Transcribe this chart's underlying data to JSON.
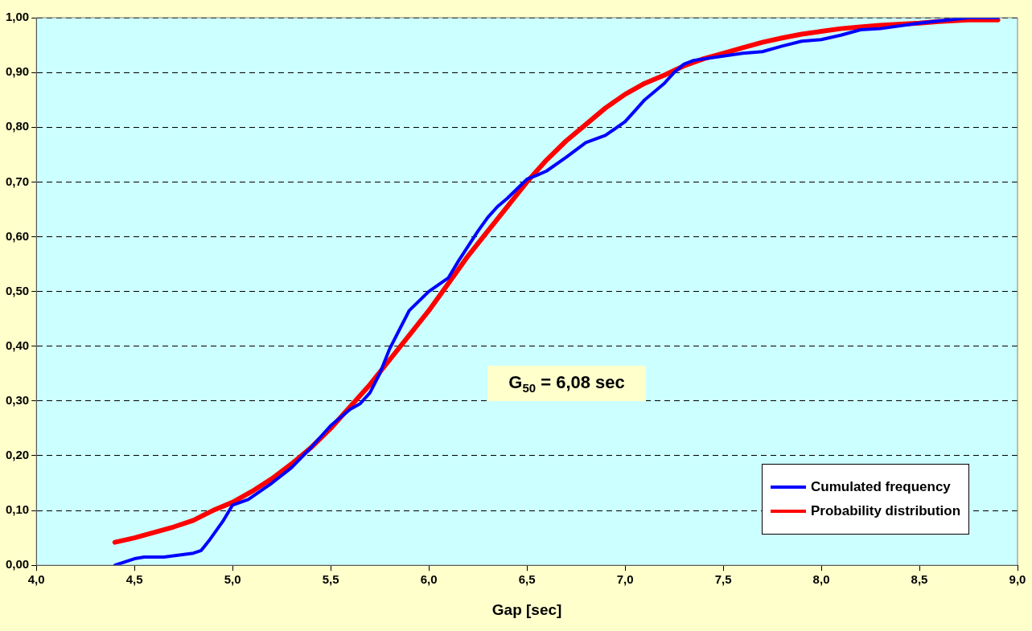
{
  "chart_data": {
    "type": "line",
    "xlabel": "Gap [sec]",
    "xlim": [
      4.0,
      9.0
    ],
    "xticks": [
      {
        "value": 4.0,
        "label": "4,0"
      },
      {
        "value": 4.5,
        "label": "4,5"
      },
      {
        "value": 5.0,
        "label": "5,0"
      },
      {
        "value": 5.5,
        "label": "5,5"
      },
      {
        "value": 6.0,
        "label": "6,0"
      },
      {
        "value": 6.5,
        "label": "6,5"
      },
      {
        "value": 7.0,
        "label": "7,0"
      },
      {
        "value": 7.5,
        "label": "7,5"
      },
      {
        "value": 8.0,
        "label": "8,0"
      },
      {
        "value": 8.5,
        "label": "8,5"
      },
      {
        "value": 9.0,
        "label": "9,0"
      }
    ],
    "ylim": [
      0,
      1
    ],
    "yticks": [
      {
        "value": 0,
        "label": "0,00"
      },
      {
        "value": 0.1,
        "label": "0,10"
      },
      {
        "value": 0.2,
        "label": "0,20"
      },
      {
        "value": 0.3,
        "label": "0,30"
      },
      {
        "value": 0.4,
        "label": "0,40"
      },
      {
        "value": 0.5,
        "label": "0,50"
      },
      {
        "value": 0.6,
        "label": "0,60"
      },
      {
        "value": 0.7,
        "label": "0,70"
      },
      {
        "value": 0.8,
        "label": "0,80"
      },
      {
        "value": 0.9,
        "label": "0,90"
      },
      {
        "value": 1.0,
        "label": "1,00"
      }
    ],
    "grid": "y",
    "legend": "bottom right",
    "marker": "none",
    "line_style": "solid",
    "annotations": [
      "G$_{50}$ = 6,08 sec"
    ],
    "series": [
      {
        "name": "Cumulated frequency",
        "color": "#0000ff",
        "x": [
          4.4,
          4.5,
          4.55,
          4.65,
          4.8,
          4.84,
          4.88,
          4.95,
          5.0,
          5.08,
          5.2,
          5.3,
          5.4,
          5.5,
          5.6,
          5.65,
          5.7,
          5.75,
          5.8,
          5.85,
          5.9,
          6.0,
          6.1,
          6.15,
          6.25,
          6.3,
          6.35,
          6.4,
          6.5,
          6.55,
          6.6,
          6.7,
          6.8,
          6.9,
          7.0,
          7.05,
          7.1,
          7.2,
          7.25,
          7.3,
          7.35,
          7.5,
          7.6,
          7.7,
          7.8,
          7.9,
          8.0,
          8.1,
          8.2,
          8.3,
          8.5,
          8.75,
          8.9
        ],
        "values": [
          0.0,
          0.012,
          0.015,
          0.015,
          0.022,
          0.027,
          0.045,
          0.08,
          0.11,
          0.12,
          0.15,
          0.178,
          0.215,
          0.255,
          0.285,
          0.295,
          0.315,
          0.35,
          0.395,
          0.43,
          0.465,
          0.5,
          0.525,
          0.555,
          0.61,
          0.635,
          0.655,
          0.67,
          0.705,
          0.712,
          0.72,
          0.745,
          0.772,
          0.785,
          0.81,
          0.83,
          0.85,
          0.88,
          0.9,
          0.915,
          0.922,
          0.93,
          0.935,
          0.938,
          0.948,
          0.957,
          0.96,
          0.968,
          0.978,
          0.98,
          0.99,
          1.0,
          1.0
        ]
      },
      {
        "name": "Probability distribution",
        "color": "#ff0000",
        "x": [
          4.4,
          4.5,
          4.6,
          4.7,
          4.8,
          4.9,
          5.0,
          5.1,
          5.2,
          5.3,
          5.4,
          5.5,
          5.6,
          5.7,
          5.8,
          5.9,
          6.0,
          6.1,
          6.2,
          6.3,
          6.4,
          6.5,
          6.6,
          6.7,
          6.8,
          6.9,
          7.0,
          7.1,
          7.2,
          7.3,
          7.4,
          7.5,
          7.6,
          7.7,
          7.8,
          7.9,
          8.0,
          8.1,
          8.2,
          8.3,
          8.5,
          8.6,
          8.75,
          8.9
        ],
        "values": [
          0.042,
          0.05,
          0.06,
          0.07,
          0.082,
          0.1,
          0.115,
          0.135,
          0.158,
          0.185,
          0.215,
          0.25,
          0.29,
          0.33,
          0.375,
          0.42,
          0.465,
          0.515,
          0.565,
          0.61,
          0.655,
          0.7,
          0.74,
          0.775,
          0.805,
          0.835,
          0.86,
          0.88,
          0.895,
          0.912,
          0.925,
          0.935,
          0.945,
          0.955,
          0.963,
          0.97,
          0.975,
          0.98,
          0.983,
          0.986,
          0.99,
          0.993,
          0.996,
          0.996
        ]
      }
    ]
  }
}
